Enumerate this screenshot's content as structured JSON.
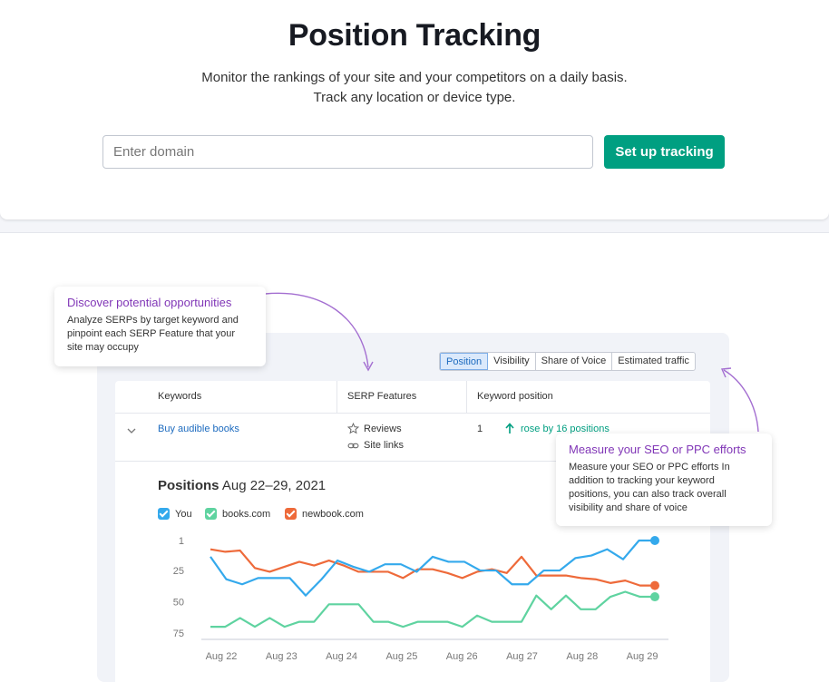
{
  "header": {
    "title": "Position Tracking",
    "subtitle_line1": "Monitor the rankings of your site and your competitors on a daily basis.",
    "subtitle_line2": "Track any location or device type.",
    "domain_placeholder": "Enter domain",
    "setup_button": "Set up tracking"
  },
  "tooltips": {
    "opportunities": {
      "title": "Discover potential opportunities",
      "text": "Analyze SERPs by target keyword and pinpoint each SERP Feature that your site may occupy"
    },
    "measure": {
      "title": "Measure your SEO or PPC efforts",
      "text": "Measure your SEO or PPC efforts In addition to tracking your keyword positions, you can also track overall visibility and share of voice"
    }
  },
  "tabs": [
    {
      "label": "Position",
      "active": true
    },
    {
      "label": "Visibility",
      "active": false
    },
    {
      "label": "Share of Voice",
      "active": false
    },
    {
      "label": "Estimated traffic",
      "active": false
    }
  ],
  "table": {
    "headers": [
      "Keywords",
      "SERP Features",
      "Keyword position"
    ],
    "row": {
      "keyword": "Buy audible books",
      "features": [
        {
          "icon": "star-icon",
          "label": "Reviews"
        },
        {
          "icon": "link-icon",
          "label": "Site links"
        }
      ],
      "position": "1",
      "change": "rose by 16 positions"
    }
  },
  "chart_section": {
    "title": "Positions",
    "range": "Aug 22–29, 2021"
  },
  "colors": {
    "accent": "#009f81",
    "you": "#34a9ec",
    "books": "#5fd3a0",
    "newbook": "#ee6a3a",
    "purple": "#8137b7"
  },
  "chart_data": {
    "type": "line",
    "y_ticks": [
      "1",
      "25",
      "50",
      "75"
    ],
    "y_axis_inverted": true,
    "ylim": [
      1,
      75
    ],
    "x_labels": [
      "Aug 22",
      "Aug 23",
      "Aug 24",
      "Aug 25",
      "Aug 26",
      "Aug 27",
      "Aug 28",
      "Aug 29"
    ],
    "series": [
      {
        "name": "You",
        "color": "#34a9ec",
        "values": [
          14,
          32,
          36,
          31,
          31,
          31,
          45,
          32,
          17,
          22,
          26,
          20,
          20,
          26,
          14,
          18,
          18,
          25,
          25,
          36,
          36,
          25,
          25,
          15,
          13,
          8,
          16,
          1,
          1
        ]
      },
      {
        "name": "books.com",
        "color": "#5fd3a0",
        "values": [
          70,
          70,
          63,
          70,
          63,
          70,
          66,
          66,
          52,
          52,
          52,
          66,
          66,
          70,
          66,
          66,
          66,
          70,
          61,
          66,
          66,
          66,
          45,
          56,
          45,
          56,
          56,
          46,
          42,
          46,
          46
        ]
      },
      {
        "name": "newbook.com",
        "color": "#ee6a3a",
        "values": [
          8,
          10,
          9,
          23,
          26,
          22,
          18,
          21,
          17,
          21,
          26,
          26,
          26,
          31,
          24,
          24,
          27,
          31,
          26,
          24,
          27,
          14,
          29,
          29,
          29,
          31,
          32,
          35,
          33,
          37,
          37
        ]
      }
    ]
  }
}
